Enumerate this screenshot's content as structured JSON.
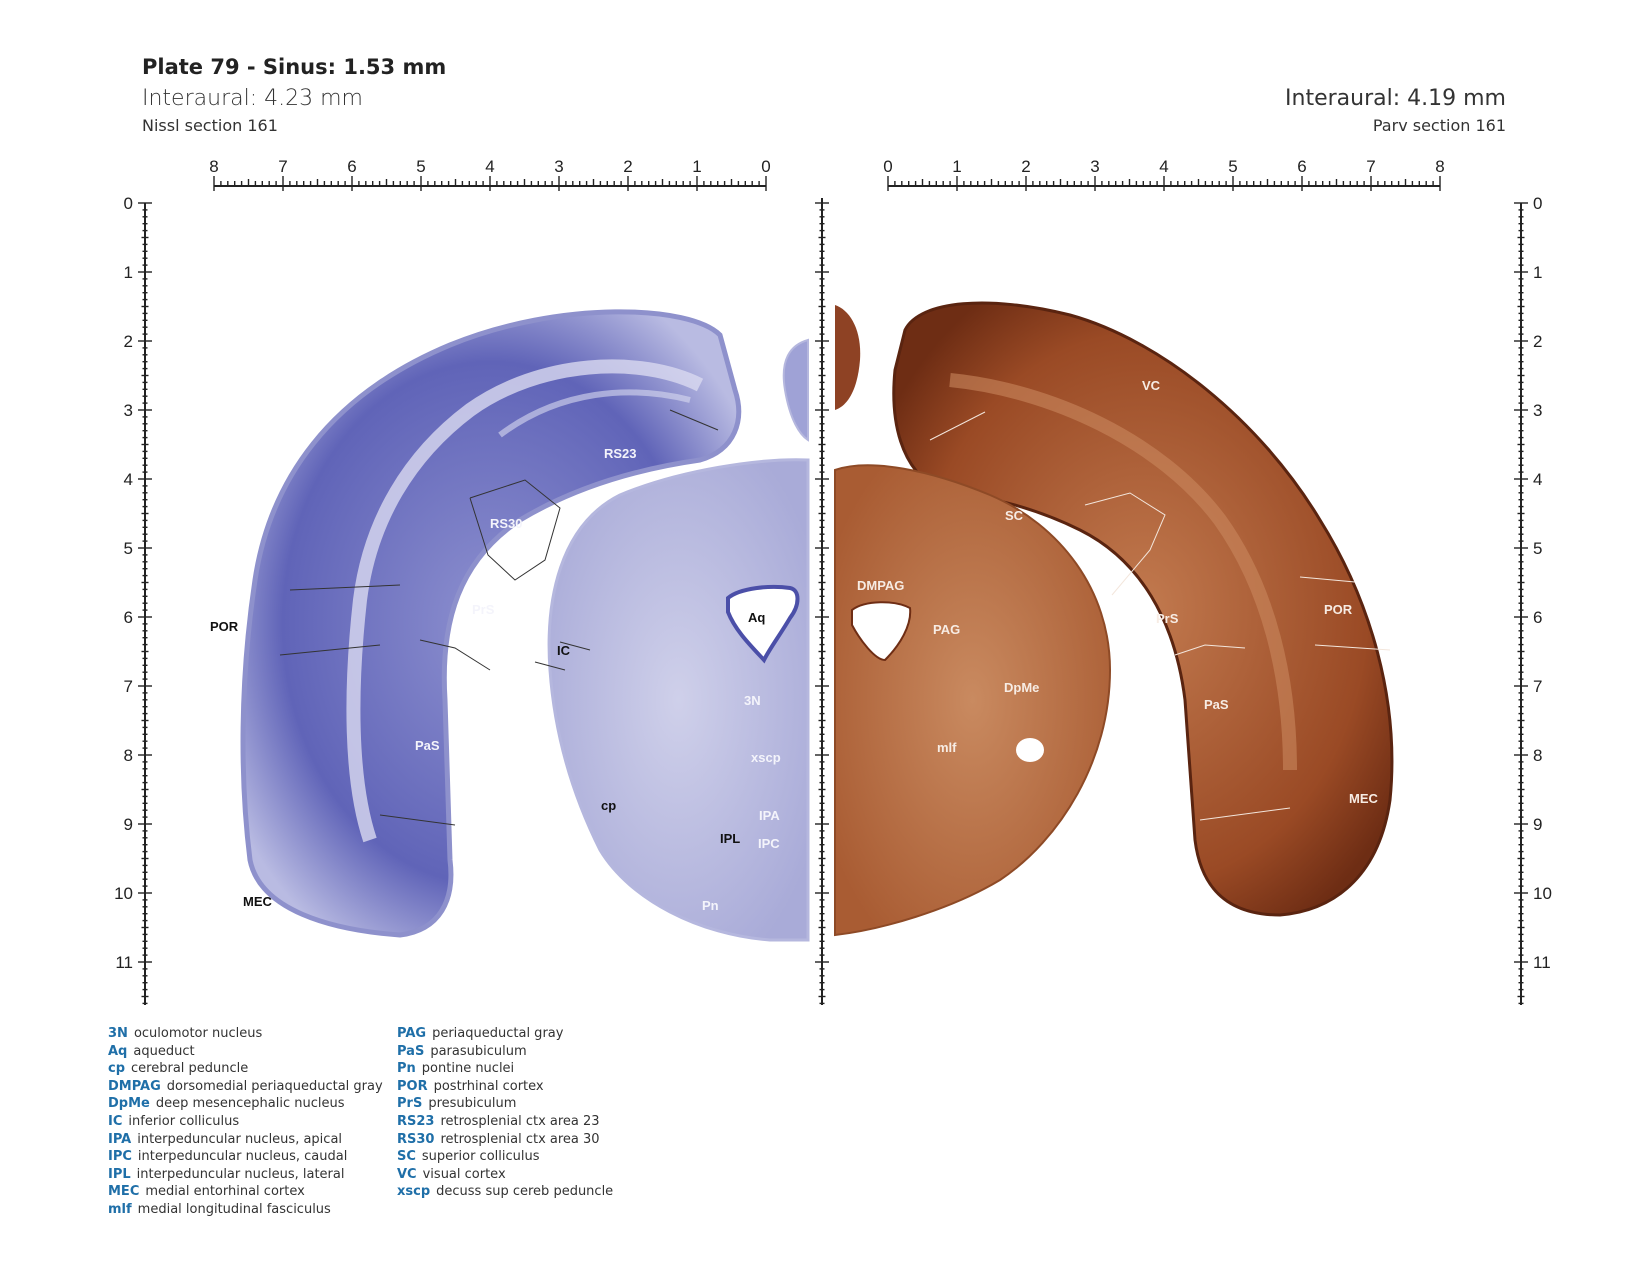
{
  "header": {
    "title": "Plate 79 - Sinus: 1.53 mm",
    "interaural_left": "Interaural: 4.23 mm",
    "section_left": "Nissl section 161",
    "interaural_right": "Interaural: 4.19 mm",
    "section_right": "Parv section 161"
  },
  "scales": {
    "top_left_ticks": [
      "8",
      "7",
      "6",
      "5",
      "4",
      "3",
      "2",
      "1",
      "0"
    ],
    "top_right_ticks": [
      "0",
      "1",
      "2",
      "3",
      "4",
      "5",
      "6",
      "7",
      "8"
    ],
    "left_ticks": [
      "0",
      "1",
      "2",
      "3",
      "4",
      "5",
      "6",
      "7",
      "8",
      "9",
      "10",
      "11"
    ],
    "right_ticks": [
      "0",
      "1",
      "2",
      "3",
      "4",
      "5",
      "6",
      "7",
      "8",
      "9",
      "10",
      "11"
    ]
  },
  "labels_left": {
    "rs23": "RS23",
    "rs30": "RS30",
    "prs": "PrS",
    "por": "POR",
    "pas": "PaS",
    "mec": "MEC",
    "ic": "IC",
    "aq": "Aq",
    "n3": "3N",
    "xscp": "xscp",
    "cp": "cp",
    "ipa": "IPA",
    "ipl": "IPL",
    "ipc": "IPC",
    "pn": "Pn"
  },
  "labels_right": {
    "vc": "VC",
    "sc": "SC",
    "dmpag": "DMPAG",
    "pag": "PAG",
    "dpme": "DpMe",
    "mlf": "mlf",
    "prs": "PrS",
    "por": "POR",
    "pas": "PaS",
    "mec": "MEC"
  },
  "legend_left": [
    {
      "abbr": "3N",
      "name": "oculomotor nucleus"
    },
    {
      "abbr": "Aq",
      "name": "aqueduct"
    },
    {
      "abbr": "cp",
      "name": "cerebral peduncle"
    },
    {
      "abbr": "DMPAG",
      "name": "dorsomedial periaqueductal gray"
    },
    {
      "abbr": "DpMe",
      "name": "deep mesencephalic nucleus"
    },
    {
      "abbr": "IC",
      "name": "inferior colliculus"
    },
    {
      "abbr": "IPA",
      "name": "interpeduncular nucleus, apical"
    },
    {
      "abbr": "IPC",
      "name": "interpeduncular nucleus, caudal"
    },
    {
      "abbr": "IPL",
      "name": "interpeduncular nucleus, lateral"
    },
    {
      "abbr": "MEC",
      "name": "medial entorhinal cortex"
    },
    {
      "abbr": "mlf",
      "name": "medial longitudinal fasciculus"
    }
  ],
  "legend_right": [
    {
      "abbr": "PAG",
      "name": "periaqueductal gray"
    },
    {
      "abbr": "PaS",
      "name": "parasubiculum"
    },
    {
      "abbr": "Pn",
      "name": "pontine nuclei"
    },
    {
      "abbr": "POR",
      "name": "postrhinal cortex"
    },
    {
      "abbr": "PrS",
      "name": "presubiculum"
    },
    {
      "abbr": "RS23",
      "name": "retrosplenial ctx area 23"
    },
    {
      "abbr": "RS30",
      "name": "retrosplenial ctx area 30"
    },
    {
      "abbr": "SC",
      "name": "superior colliculus"
    },
    {
      "abbr": "VC",
      "name": "visual cortex"
    },
    {
      "abbr": "xscp",
      "name": "decuss sup cereb peduncle"
    }
  ],
  "colors": {
    "nissl": "#5b5fb4",
    "nissl_light": "#c9cbe8",
    "parv": "#9a4a25",
    "parv_light": "#c98458",
    "legend_abbr": "#1f6fa8"
  }
}
